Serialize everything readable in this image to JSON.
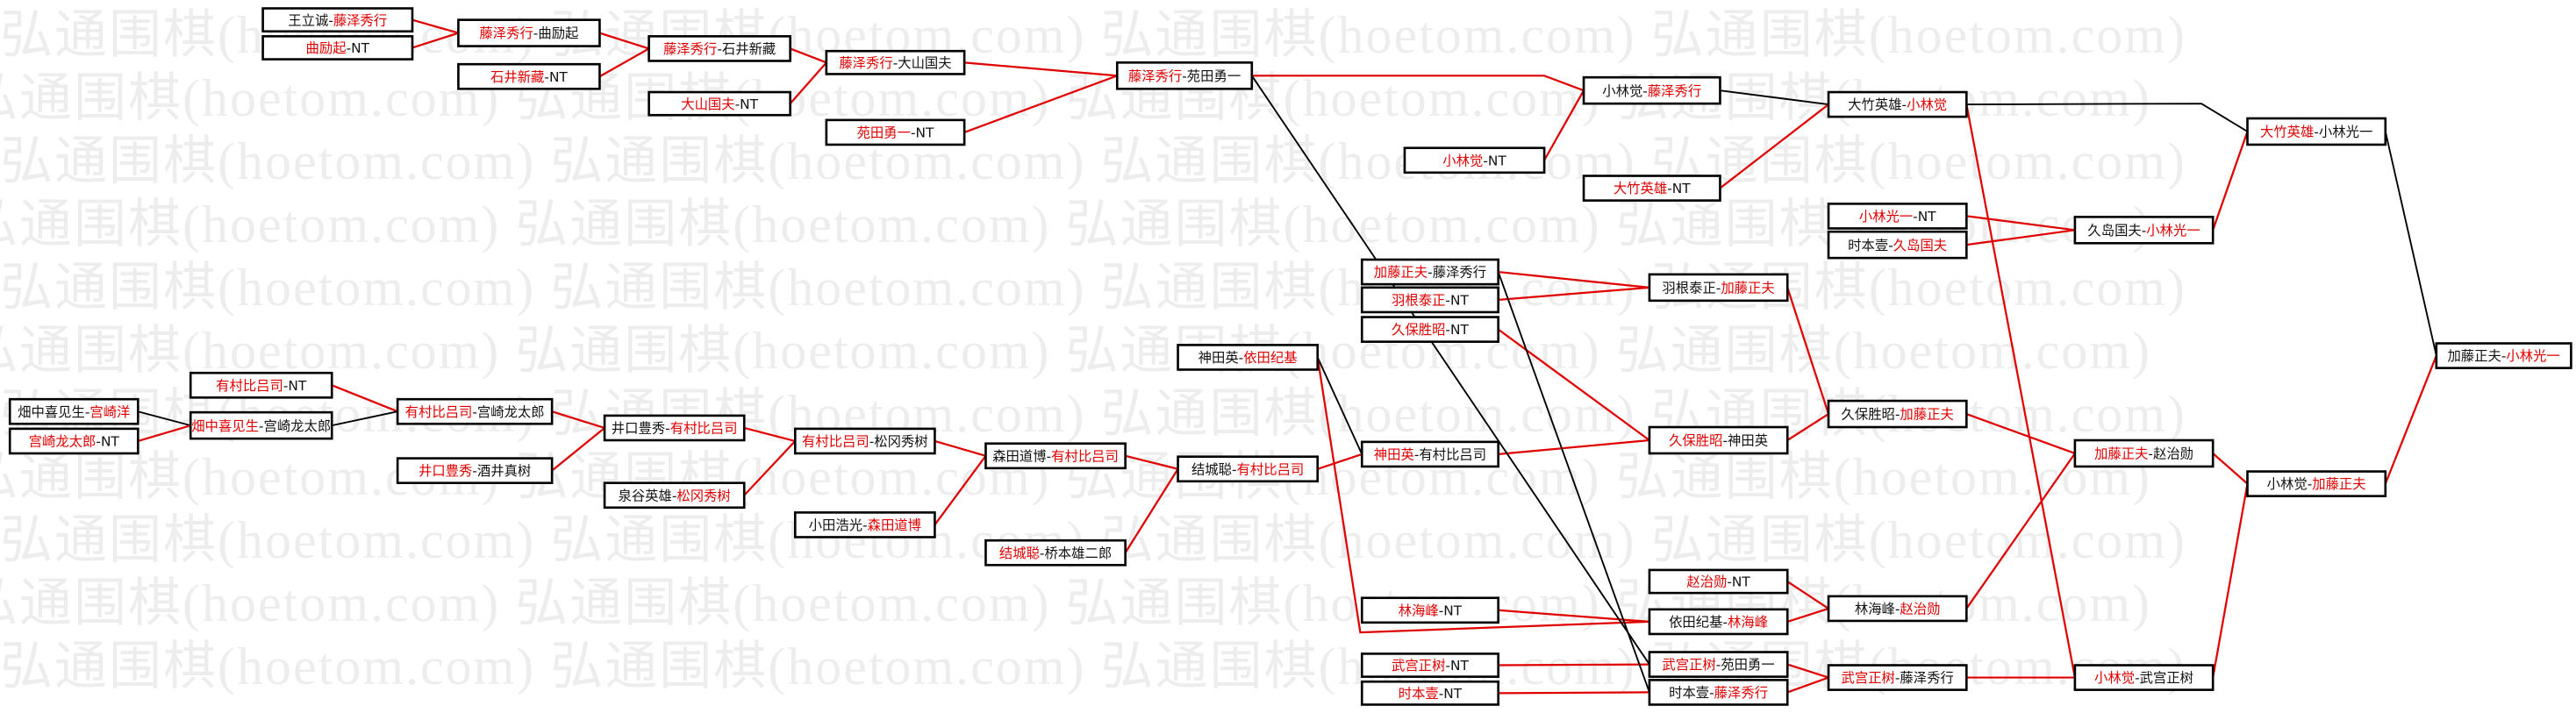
{
  "watermark": "弘通围棋(hoetom.com) 弘通围棋(hoetom.com) 弘通围棋(hoetom.com) 弘通围棋(hoetom.com)",
  "colors": {
    "winner": "#e00000",
    "loser": "#111111",
    "line_red": "#e00000",
    "line_black": "#000000"
  },
  "matches": [
    {
      "p1": "王立诚",
      "p2": "藤泽秀行",
      "winner": 2
    },
    {
      "p1": "曲励起",
      "p2": "NT",
      "winner": 1
    },
    {
      "p1": "藤泽秀行",
      "p2": "曲励起",
      "winner": 1
    },
    {
      "p1": "石井新藏",
      "p2": "NT",
      "winner": 1
    },
    {
      "p1": "藤泽秀行",
      "p2": "石井新藏",
      "winner": 1
    },
    {
      "p1": "大山国夫",
      "p2": "NT",
      "winner": 1
    },
    {
      "p1": "藤泽秀行",
      "p2": "大山国夫",
      "winner": 1
    },
    {
      "p1": "苑田勇一",
      "p2": "NT",
      "winner": 1
    },
    {
      "p1": "藤泽秀行",
      "p2": "苑田勇一",
      "winner": 1
    },
    {
      "p1": "小林觉",
      "p2": "藤泽秀行",
      "winner": 2
    },
    {
      "p1": "小林觉",
      "p2": "NT",
      "winner": 1
    },
    {
      "p1": "大竹英雄",
      "p2": "NT",
      "winner": 1
    },
    {
      "p1": "大竹英雄",
      "p2": "小林觉",
      "winner": 2
    },
    {
      "p1": "小林光一",
      "p2": "NT",
      "winner": 1
    },
    {
      "p1": "时本壹",
      "p2": "久岛国夫",
      "winner": 2
    },
    {
      "p1": "久岛国夫",
      "p2": "小林光一",
      "winner": 2
    },
    {
      "p1": "大竹英雄",
      "p2": "小林光一",
      "winner": 1
    },
    {
      "p1": "加藤正夫",
      "p2": "藤泽秀行",
      "winner": 1
    },
    {
      "p1": "羽根泰正",
      "p2": "NT",
      "winner": 1
    },
    {
      "p1": "久保胜昭",
      "p2": "NT",
      "winner": 1
    },
    {
      "p1": "羽根泰正",
      "p2": "加藤正夫",
      "winner": 2
    },
    {
      "p1": "神田英",
      "p2": "依田纪基",
      "winner": 2
    },
    {
      "p1": "神田英",
      "p2": "有村比吕司",
      "winner": 1
    },
    {
      "p1": "久保胜昭",
      "p2": "神田英",
      "winner": 1
    },
    {
      "p1": "久保胜昭",
      "p2": "加藤正夫",
      "winner": 2
    },
    {
      "p1": "加藤正夫",
      "p2": "小林光一",
      "winner": 2
    },
    {
      "p1": "加藤正夫",
      "p2": "赵治勋",
      "winner": 1
    },
    {
      "p1": "小林觉",
      "p2": "加藤正夫",
      "winner": 2
    },
    {
      "p1": "结城聪",
      "p2": "有村比吕司",
      "winner": 2
    },
    {
      "p1": "森田道博",
      "p2": "有村比吕司",
      "winner": 2
    },
    {
      "p1": "结城聪",
      "p2": "桥本雄二郎",
      "winner": 1
    },
    {
      "p1": "有村比吕司",
      "p2": "松冈秀树",
      "winner": 1
    },
    {
      "p1": "小田浩光",
      "p2": "森田道博",
      "winner": 2
    },
    {
      "p1": "井口豊秀",
      "p2": "有村比吕司",
      "winner": 2
    },
    {
      "p1": "泉谷英雄",
      "p2": "松冈秀树",
      "winner": 2
    },
    {
      "p1": "有村比吕司",
      "p2": "宫崎龙太郎",
      "winner": 1
    },
    {
      "p1": "井口豊秀",
      "p2": "酒井真树",
      "winner": 1
    },
    {
      "p1": "有村比吕司",
      "p2": "NT",
      "winner": 1
    },
    {
      "p1": "畑中喜见生",
      "p2": "宫崎龙太郎",
      "winner": 1
    },
    {
      "p1": "畑中喜见生",
      "p2": "宫崎洋",
      "winner": 2
    },
    {
      "p1": "宫崎龙太郎",
      "p2": "NT",
      "winner": 1
    },
    {
      "p1": "赵治勋",
      "p2": "NT",
      "winner": 1
    },
    {
      "p1": "林海峰",
      "p2": "NT",
      "winner": 1
    },
    {
      "p1": "依田纪基",
      "p2": "林海峰",
      "winner": 2
    },
    {
      "p1": "林海峰",
      "p2": "赵治勋",
      "winner": 2
    },
    {
      "p1": "武宫正树",
      "p2": "NT",
      "winner": 1
    },
    {
      "p1": "时本壹",
      "p2": "NT",
      "winner": 1
    },
    {
      "p1": "武宫正树",
      "p2": "苑田勇一",
      "winner": 1
    },
    {
      "p1": "时本壹",
      "p2": "藤泽秀行",
      "winner": 2
    },
    {
      "p1": "武宫正树",
      "p2": "藤泽秀行",
      "winner": 1
    },
    {
      "p1": "小林觉",
      "p2": "武宫正树",
      "winner": 1
    }
  ]
}
